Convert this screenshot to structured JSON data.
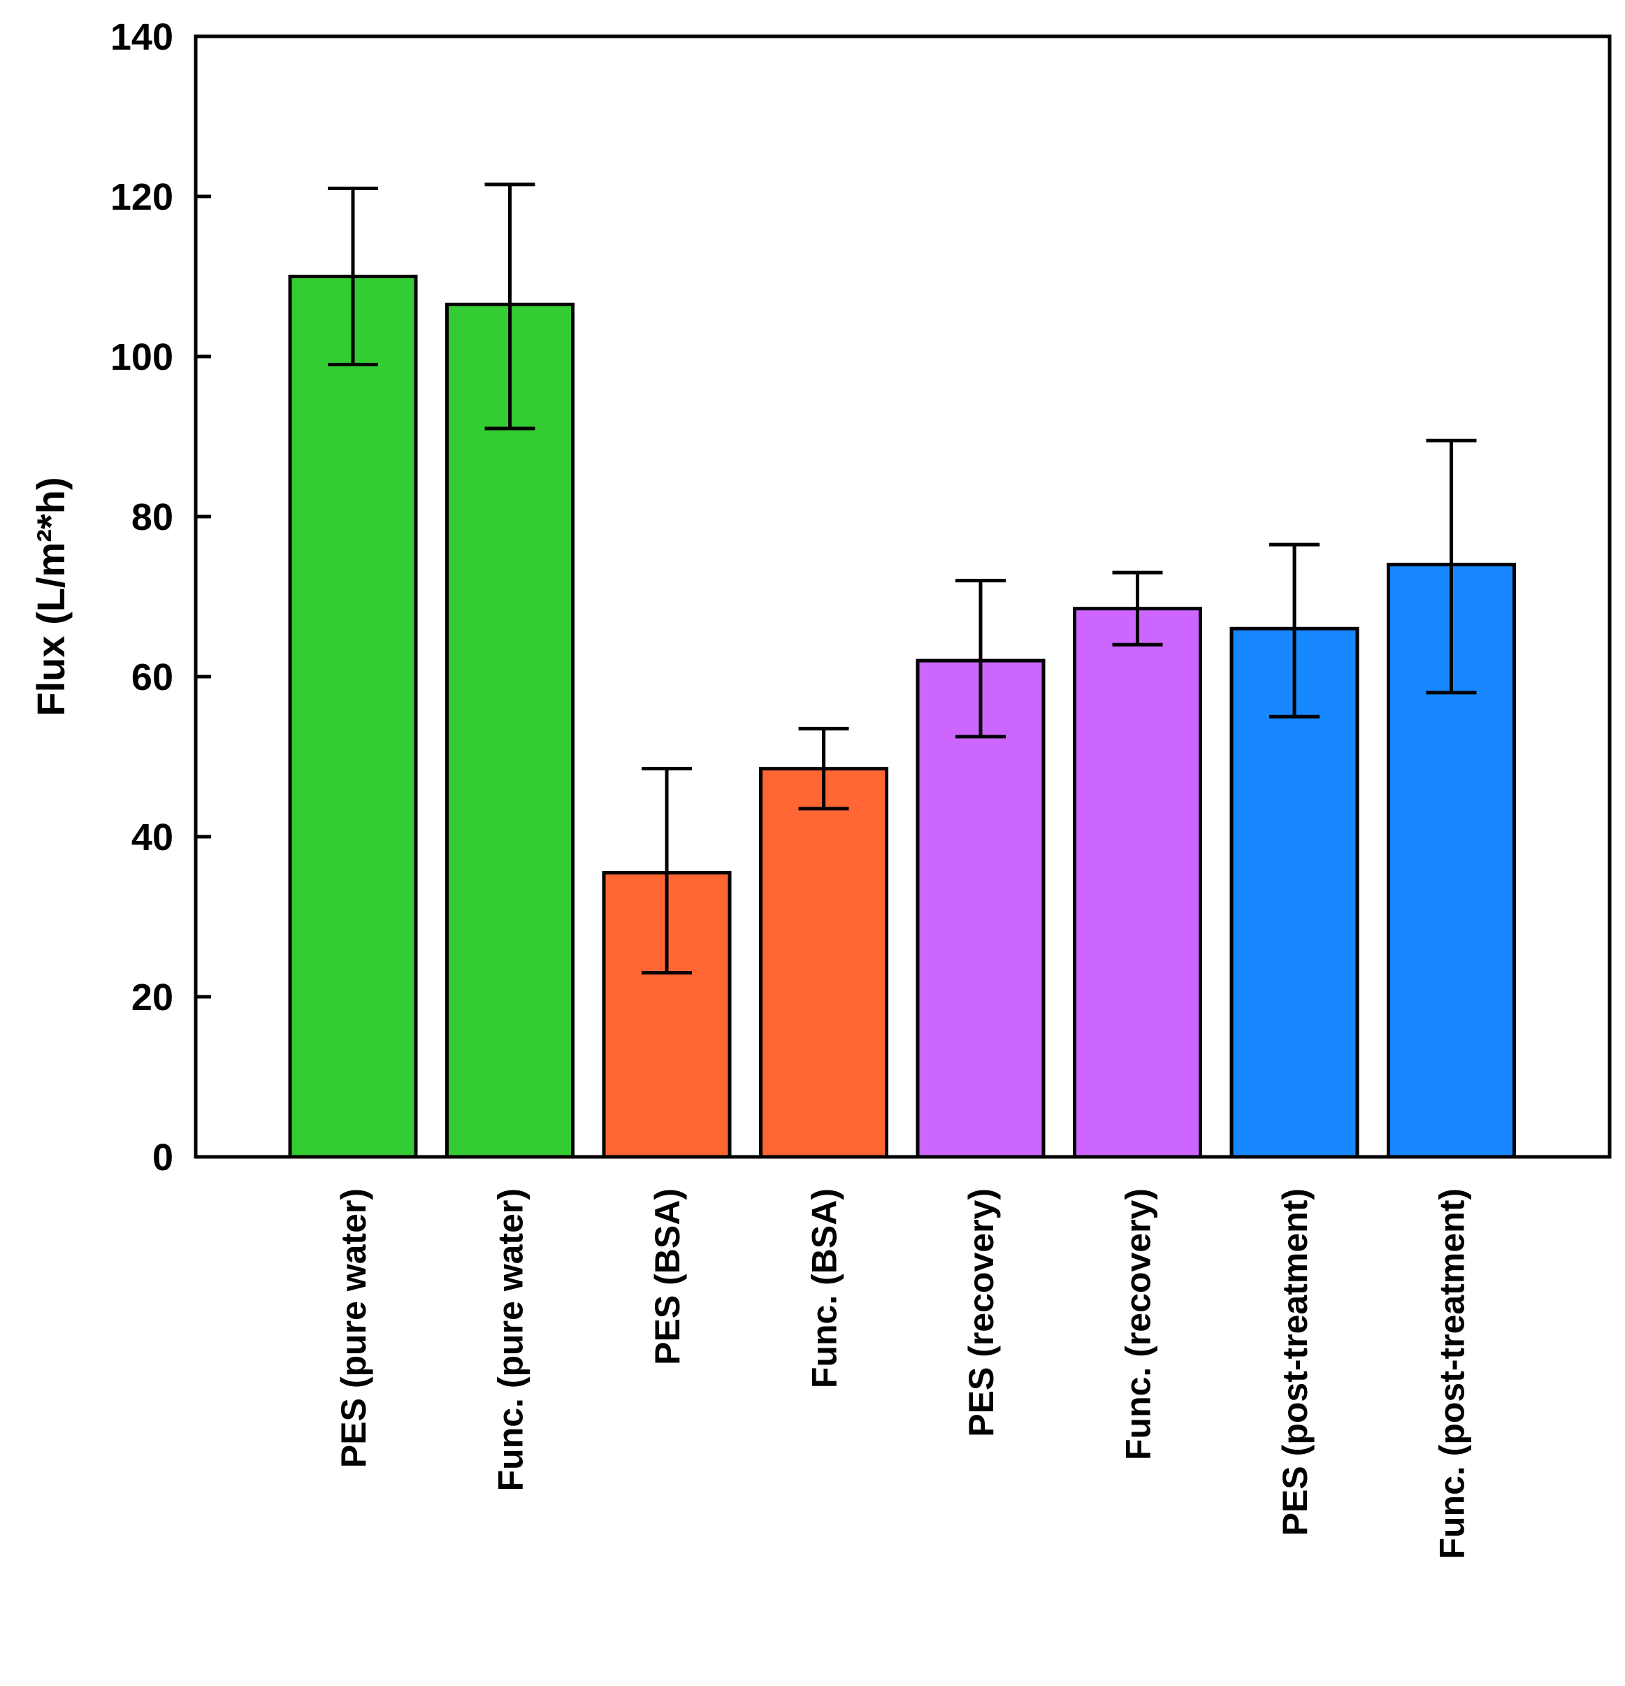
{
  "chart_data": {
    "type": "bar",
    "title": "",
    "xlabel": "",
    "ylabel": "Flux (L/m²*h)",
    "ylim": [
      0,
      140
    ],
    "yticks": [
      0,
      20,
      40,
      60,
      80,
      100,
      120,
      140
    ],
    "grid": false,
    "categories": [
      "PES (pure water)",
      "Func. (pure water)",
      "PES (BSA)",
      "Func. (BSA)",
      "PES (recovery)",
      "Func. (recovery)",
      "PES (post-treatment)",
      "Func. (post-treatment)"
    ],
    "values": [
      110,
      106.5,
      35.5,
      48.5,
      62,
      68.5,
      66,
      74
    ],
    "error_upper": [
      121,
      121.5,
      48.5,
      53.5,
      72,
      73,
      76.5,
      89.5
    ],
    "error_lower": [
      99,
      91,
      23,
      43.5,
      52.5,
      64,
      55,
      58
    ],
    "colors": [
      "#33cc33",
      "#33cc33",
      "#ff6633",
      "#ff6633",
      "#cc66ff",
      "#cc66ff",
      "#1788ff",
      "#1788ff"
    ]
  }
}
